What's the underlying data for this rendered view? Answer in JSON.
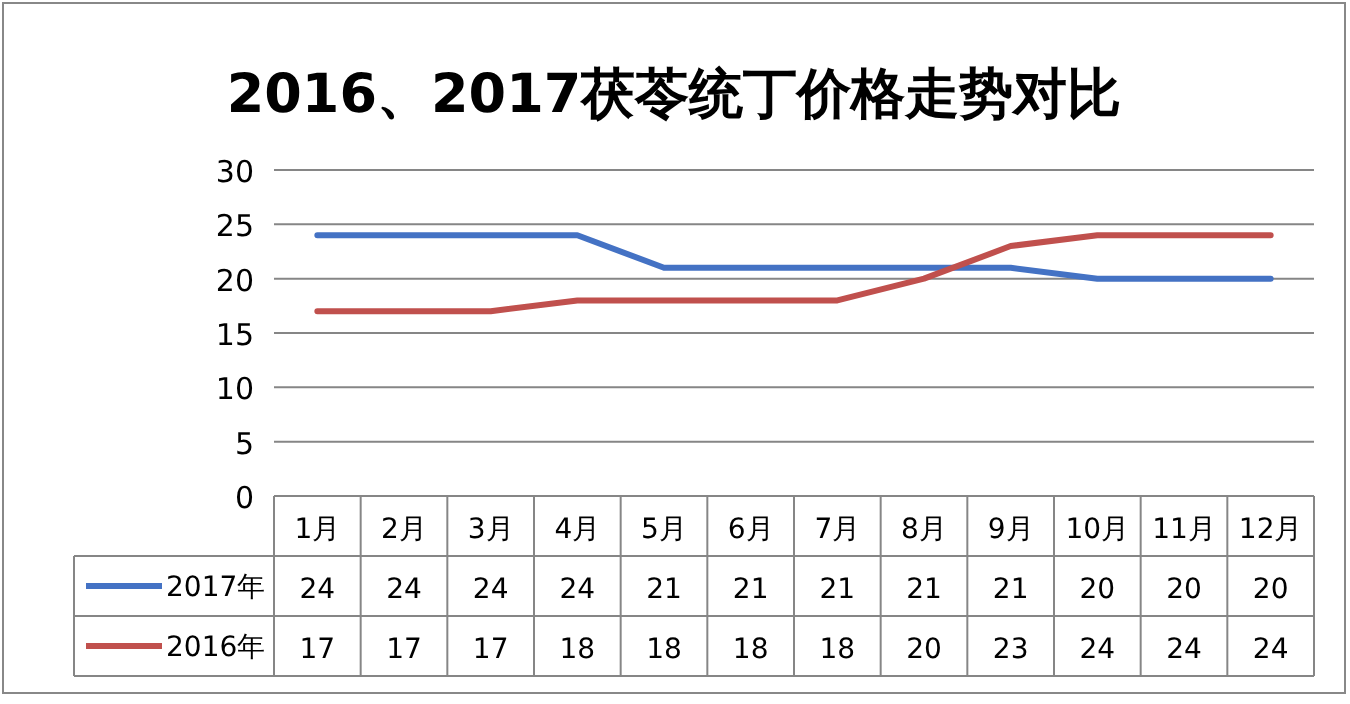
{
  "chart_data": {
    "type": "line",
    "title": "2016、2017茯苓统丁价格走势对比",
    "categories": [
      "1月",
      "2月",
      "3月",
      "4月",
      "5月",
      "6月",
      "7月",
      "8月",
      "9月",
      "10月",
      "11月",
      "12月"
    ],
    "series": [
      {
        "name": "2017年",
        "color": "#4472c4",
        "values": [
          24,
          24,
          24,
          24,
          21,
          21,
          21,
          21,
          21,
          20,
          20,
          20
        ]
      },
      {
        "name": "2016年",
        "color": "#c0504d",
        "values": [
          17,
          17,
          17,
          18,
          18,
          18,
          18,
          20,
          23,
          24,
          24,
          24
        ]
      }
    ],
    "ylim": [
      0,
      30
    ],
    "yticks": [
      0,
      5,
      10,
      15,
      20,
      25,
      30
    ],
    "grid": "y",
    "data_labels": true,
    "legend": "bottom",
    "marker": "none",
    "line_style": "solid"
  }
}
